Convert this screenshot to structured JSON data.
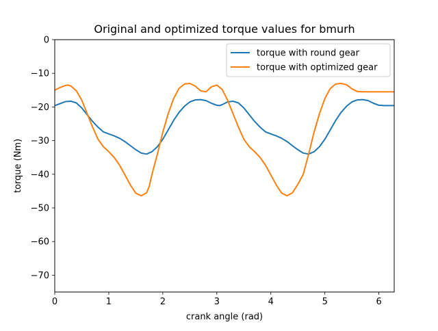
{
  "chart_data": {
    "type": "line",
    "title": "Original and optimized torque values for bmurh",
    "xlabel": "crank angle (rad)",
    "ylabel": "torque (Nm)",
    "xlim": [
      0,
      6.283
    ],
    "ylim": [
      -75,
      0
    ],
    "xticks": [
      0,
      1,
      2,
      3,
      4,
      5,
      6
    ],
    "yticks": [
      0,
      -10,
      -20,
      -30,
      -40,
      -50,
      -60,
      -70
    ],
    "grid": false,
    "legend_position": "upper right",
    "series": [
      {
        "name": "torque with round gear",
        "color": "#1f77b4",
        "x": [
          0,
          0.1,
          0.2,
          0.3,
          0.4,
          0.5,
          0.6,
          0.7,
          0.8,
          0.9,
          1.0,
          1.1,
          1.2,
          1.3,
          1.4,
          1.5,
          1.6,
          1.7,
          1.8,
          1.9,
          2.0,
          2.1,
          2.2,
          2.3,
          2.4,
          2.5,
          2.6,
          2.7,
          2.8,
          2.9,
          3.0,
          3.05,
          3.1,
          3.2,
          3.3,
          3.4,
          3.5,
          3.6,
          3.7,
          3.8,
          3.9,
          4.0,
          4.1,
          4.2,
          4.3,
          4.4,
          4.5,
          4.6,
          4.7,
          4.8,
          4.9,
          5.0,
          5.1,
          5.2,
          5.3,
          5.4,
          5.5,
          5.6,
          5.7,
          5.8,
          5.9,
          6.0,
          6.1,
          6.2,
          6.283
        ],
        "y": [
          -19.6,
          -19.0,
          -18.4,
          -18.3,
          -18.8,
          -20.3,
          -22.3,
          -24.3,
          -26.0,
          -27.4,
          -28.0,
          -28.6,
          -29.3,
          -30.3,
          -31.5,
          -32.7,
          -33.7,
          -34.0,
          -33.3,
          -31.8,
          -29.6,
          -26.8,
          -24.0,
          -21.6,
          -19.8,
          -18.5,
          -17.9,
          -17.8,
          -18.1,
          -18.9,
          -19.5,
          -19.6,
          -19.3,
          -18.5,
          -18.3,
          -18.8,
          -20.3,
          -22.3,
          -24.3,
          -26.0,
          -27.4,
          -28.0,
          -28.6,
          -29.3,
          -30.3,
          -31.5,
          -32.7,
          -33.7,
          -34.0,
          -33.3,
          -31.8,
          -29.6,
          -26.8,
          -24.0,
          -21.6,
          -19.8,
          -18.5,
          -17.9,
          -17.8,
          -18.1,
          -18.9,
          -19.5,
          -19.6,
          -19.6,
          -19.6
        ]
      },
      {
        "name": "torque with optimized gear",
        "color": "#ff7f0e",
        "x": [
          0,
          0.1,
          0.2,
          0.25,
          0.3,
          0.4,
          0.5,
          0.6,
          0.7,
          0.8,
          0.9,
          1.0,
          1.1,
          1.2,
          1.3,
          1.4,
          1.5,
          1.6,
          1.7,
          1.75,
          1.8,
          1.9,
          2.0,
          2.1,
          2.2,
          2.3,
          2.4,
          2.5,
          2.6,
          2.7,
          2.8,
          2.9,
          3.0,
          3.1,
          3.2,
          3.3,
          3.4,
          3.5,
          3.6,
          3.7,
          3.8,
          3.9,
          4.0,
          4.1,
          4.2,
          4.3,
          4.4,
          4.5,
          4.6,
          4.7,
          4.8,
          4.9,
          5.0,
          5.1,
          5.2,
          5.3,
          5.4,
          5.5,
          5.6,
          5.7,
          5.8,
          5.9,
          6.0,
          6.1,
          6.2,
          6.283
        ],
        "y": [
          -15.0,
          -14.2,
          -13.6,
          -13.5,
          -13.8,
          -15.2,
          -18.0,
          -22.0,
          -26.0,
          -29.6,
          -31.8,
          -33.3,
          -35.0,
          -37.3,
          -40.2,
          -43.2,
          -45.6,
          -46.4,
          -45.5,
          -43.5,
          -40.0,
          -34.0,
          -27.5,
          -22.0,
          -17.5,
          -14.5,
          -13.2,
          -13.0,
          -13.8,
          -15.2,
          -15.5,
          -14.0,
          -13.5,
          -14.8,
          -18.0,
          -22.0,
          -26.0,
          -29.6,
          -31.8,
          -33.3,
          -35.0,
          -37.3,
          -40.2,
          -43.2,
          -45.6,
          -46.4,
          -45.5,
          -43.0,
          -40.0,
          -34.0,
          -27.5,
          -22.0,
          -17.5,
          -14.5,
          -13.2,
          -13.0,
          -13.4,
          -14.6,
          -15.4,
          -15.5,
          -15.5,
          -15.5,
          -15.5,
          -15.5,
          -15.5,
          -15.5
        ]
      }
    ]
  }
}
